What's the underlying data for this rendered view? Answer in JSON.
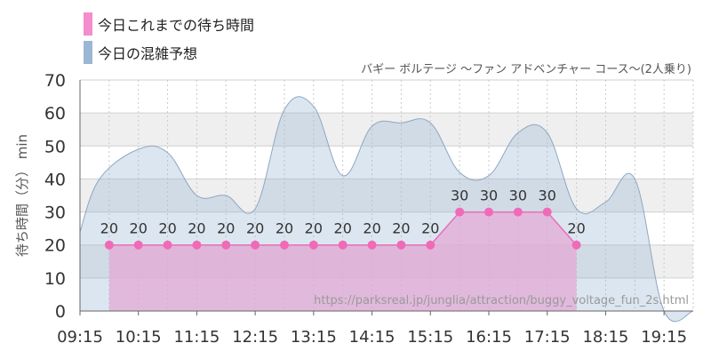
{
  "legend": [
    {
      "label": "今日これまでの待ち時間",
      "color": "#f58ccd"
    },
    {
      "label": "今日の混雑予想",
      "color": "#9bb7d4"
    }
  ],
  "subtitle": "バギー ボルテージ 〜ファン アドベンチャー コース〜(2人乗り)",
  "watermark": "https://parksreal.jp/junglia/attraction/buggy_voltage_fun_2s.html",
  "chart_data": {
    "type": "area",
    "ylabel": "待ち時間（分） min",
    "ylim": [
      0,
      70
    ],
    "yticks": [
      0,
      10,
      20,
      30,
      40,
      50,
      60,
      70
    ],
    "xlim": [
      "09:15",
      "19:45"
    ],
    "xticks": [
      "09:15",
      "10:15",
      "11:15",
      "12:15",
      "13:15",
      "14:15",
      "15:15",
      "16:15",
      "17:15",
      "18:15",
      "19:15"
    ],
    "grid": true,
    "legend_position": "top-left",
    "series": [
      {
        "name": "今日これまでの待ち時間",
        "color": "#f58ccd",
        "x": [
          "09:45",
          "10:15",
          "10:45",
          "11:15",
          "11:45",
          "12:15",
          "12:45",
          "13:15",
          "13:45",
          "14:15",
          "14:45",
          "15:15",
          "15:45",
          "16:15",
          "16:45",
          "17:15",
          "17:45"
        ],
        "values": [
          20,
          20,
          20,
          20,
          20,
          20,
          20,
          20,
          20,
          20,
          20,
          20,
          30,
          30,
          30,
          30,
          20
        ]
      },
      {
        "name": "今日の混雑予想",
        "color": "#9bb7d4",
        "x": [
          "09:15",
          "09:35",
          "10:15",
          "10:45",
          "11:15",
          "11:45",
          "12:15",
          "12:45",
          "13:15",
          "13:45",
          "14:15",
          "14:45",
          "15:15",
          "15:45",
          "16:15",
          "16:45",
          "17:15",
          "17:45",
          "18:15",
          "18:45",
          "19:15",
          "19:45"
        ],
        "values": [
          24,
          40,
          49,
          48,
          35,
          35,
          31,
          61,
          62,
          41,
          56,
          57,
          57,
          42,
          41,
          54,
          54,
          31,
          33,
          40,
          0,
          0
        ]
      }
    ]
  }
}
